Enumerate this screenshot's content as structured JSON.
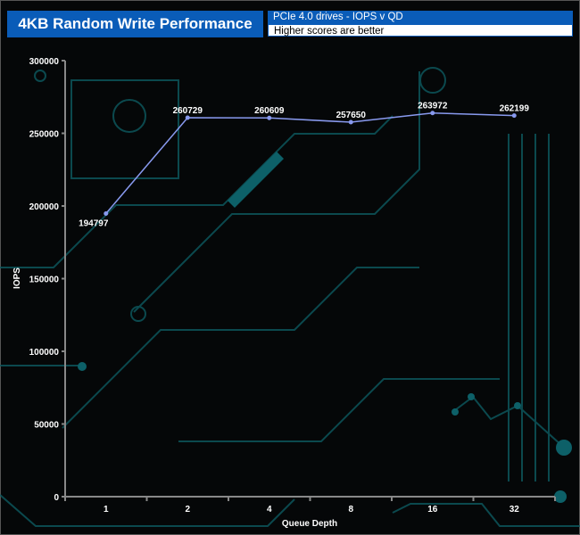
{
  "header": {
    "title": "4KB Random Write Performance",
    "subtitle": "PCIe 4.0 drives - IOPS v QD",
    "note": "Higher scores are better"
  },
  "chart_data": {
    "type": "line",
    "title": "4KB Random Write Performance",
    "xlabel": "Queue Depth",
    "ylabel": "IOPS",
    "categories": [
      "1",
      "2",
      "4",
      "8",
      "16",
      "32"
    ],
    "values": [
      194797,
      260729,
      260609,
      257650,
      263972,
      262199
    ],
    "ylim": [
      0,
      300000
    ],
    "yticks": [
      0,
      50000,
      100000,
      150000,
      200000,
      250000,
      300000
    ],
    "grid": false,
    "line_color": "#8899ee"
  }
}
